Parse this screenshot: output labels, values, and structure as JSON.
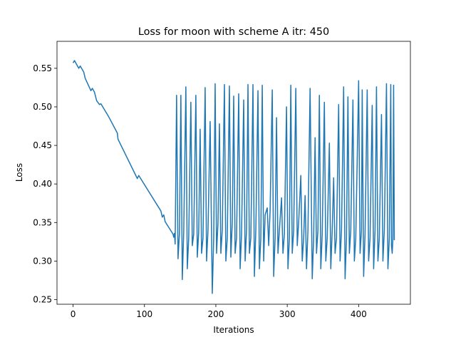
{
  "chart_data": {
    "type": "line",
    "title": "Loss for moon with scheme A itr: 450",
    "x_label": "Iterations",
    "y_label": "Loss",
    "color": "#1f77b4",
    "xlim": [
      -22.5,
      472.5
    ],
    "xticks": [
      0,
      100,
      200,
      300,
      400
    ],
    "ylim": [
      0.244,
      0.585
    ],
    "yticks": [
      0.25,
      {
        "value": 0.3,
        "label": "0.30"
      },
      0.35,
      {
        "value": 0.4,
        "label": "0.40"
      },
      0.45,
      {
        "value": 0.5,
        "label": "0.50"
      },
      0.55
    ],
    "x": [
      0,
      2,
      5,
      8,
      10,
      15,
      17,
      25,
      27,
      30,
      33,
      37,
      39,
      50,
      62,
      63,
      90,
      92,
      123,
      125,
      127,
      129,
      140,
      141,
      142,
      143,
      145,
      147,
      149,
      151,
      153,
      155,
      158,
      160,
      162,
      165,
      167,
      169,
      172,
      174,
      176,
      178,
      180,
      182,
      185,
      187,
      189,
      192,
      195,
      197,
      199,
      201,
      203,
      205,
      207,
      209,
      212,
      214,
      216,
      219,
      221,
      223,
      225,
      227,
      229,
      232,
      234,
      236,
      239,
      241,
      243,
      245,
      247,
      249,
      252,
      254,
      256,
      259,
      261,
      263,
      265,
      267,
      269,
      272,
      274,
      276,
      279,
      281,
      283,
      285,
      287,
      289,
      292,
      294,
      296,
      299,
      301,
      303,
      305,
      307,
      309,
      312,
      314,
      316,
      319,
      321,
      323,
      325,
      327,
      329,
      332,
      335,
      337,
      339,
      341,
      343,
      345,
      347,
      349,
      352,
      354,
      356,
      359,
      361,
      363,
      365,
      367,
      369,
      372,
      374,
      376,
      379,
      381,
      383,
      385,
      387,
      389,
      392,
      394,
      396,
      400,
      402,
      404,
      405,
      407,
      409,
      412,
      414,
      416,
      419,
      421,
      423,
      425,
      427,
      429,
      432,
      434,
      436,
      439,
      441,
      443,
      445,
      446,
      447,
      448,
      449,
      450
    ],
    "values": [
      0.557,
      0.56,
      0.555,
      0.55,
      0.553,
      0.545,
      0.537,
      0.521,
      0.524,
      0.519,
      0.508,
      0.503,
      0.504,
      0.487,
      0.466,
      0.458,
      0.407,
      0.411,
      0.365,
      0.357,
      0.36,
      0.351,
      0.335,
      0.331,
      0.336,
      0.322,
      0.515,
      0.303,
      0.336,
      0.515,
      0.276,
      0.338,
      0.526,
      0.29,
      0.33,
      0.506,
      0.32,
      0.335,
      0.515,
      0.305,
      0.338,
      0.471,
      0.31,
      0.33,
      0.525,
      0.3,
      0.34,
      0.481,
      0.258,
      0.33,
      0.53,
      0.31,
      0.35,
      0.478,
      0.31,
      0.34,
      0.529,
      0.3,
      0.33,
      0.527,
      0.305,
      0.35,
      0.514,
      0.31,
      0.33,
      0.517,
      0.29,
      0.335,
      0.509,
      0.3,
      0.34,
      0.529,
      0.31,
      0.33,
      0.529,
      0.28,
      0.34,
      0.521,
      0.29,
      0.33,
      0.528,
      0.3,
      0.36,
      0.369,
      0.32,
      0.365,
      0.522,
      0.28,
      0.33,
      0.486,
      0.31,
      0.34,
      0.382,
      0.31,
      0.335,
      0.5,
      0.29,
      0.33,
      0.528,
      0.31,
      0.34,
      0.524,
      0.32,
      0.35,
      0.411,
      0.3,
      0.33,
      0.385,
      0.29,
      0.34,
      0.524,
      0.277,
      0.33,
      0.46,
      0.31,
      0.34,
      0.515,
      0.29,
      0.335,
      0.506,
      0.3,
      0.33,
      0.453,
      0.29,
      0.34,
      0.408,
      0.31,
      0.33,
      0.503,
      0.3,
      0.34,
      0.526,
      0.277,
      0.33,
      0.513,
      0.31,
      0.34,
      0.509,
      0.3,
      0.33,
      0.534,
      0.31,
      0.34,
      0.522,
      0.28,
      0.335,
      0.522,
      0.3,
      0.33,
      0.502,
      0.29,
      0.34,
      0.526,
      0.3,
      0.33,
      0.49,
      0.3,
      0.34,
      0.53,
      0.29,
      0.33,
      0.529,
      0.32,
      0.31,
      0.33,
      0.528,
      0.327
    ]
  }
}
